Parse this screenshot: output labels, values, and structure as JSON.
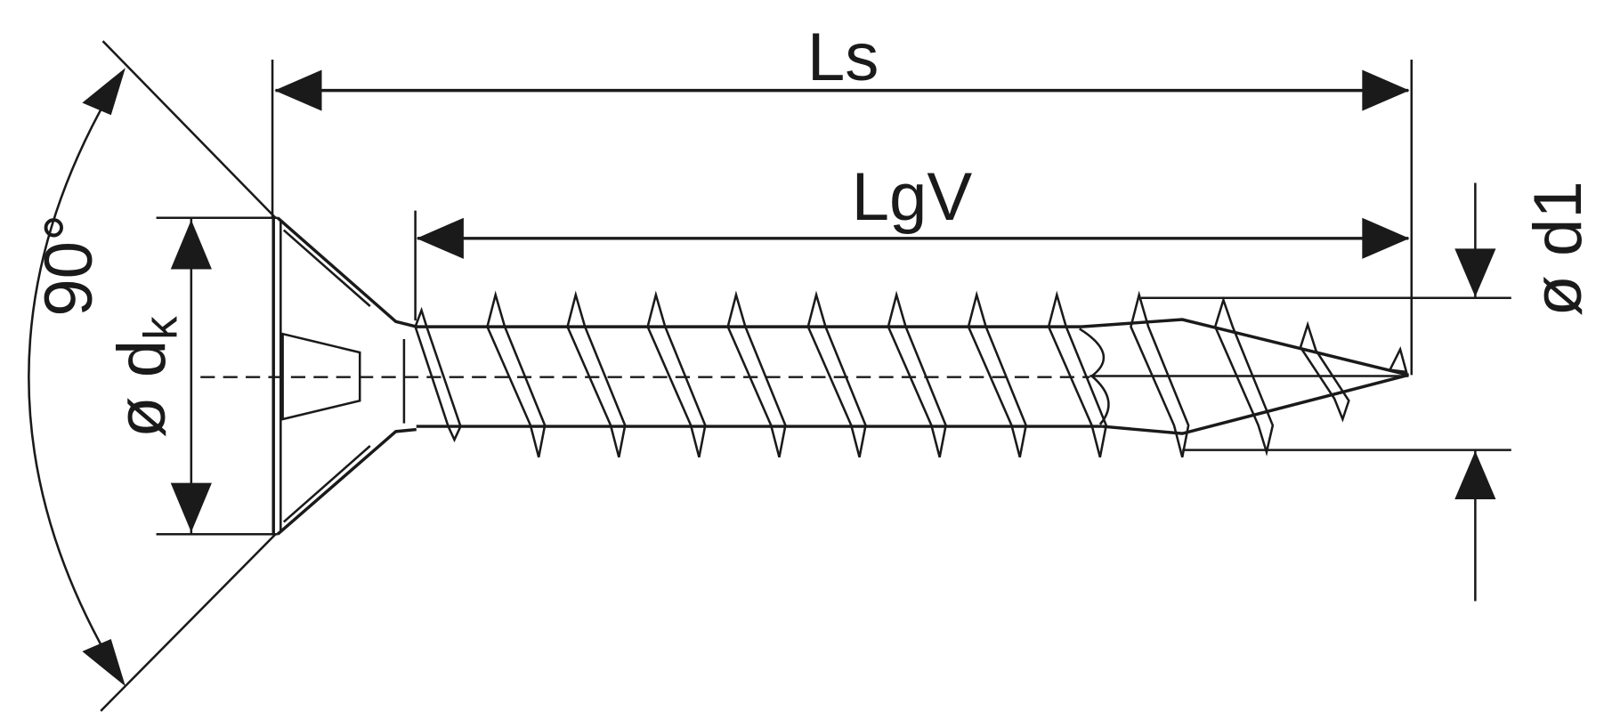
{
  "diagram": {
    "subject": "countersunk-screw",
    "line_color": "#1a1a1a",
    "background": "#ffffff",
    "labels": {
      "overall_length": "Ls",
      "thread_length": "LgV",
      "head_diameter_symbol": "ø d",
      "head_diameter_subscript": "k",
      "head_angle": "90°",
      "thread_diameter": "ø d1"
    }
  }
}
